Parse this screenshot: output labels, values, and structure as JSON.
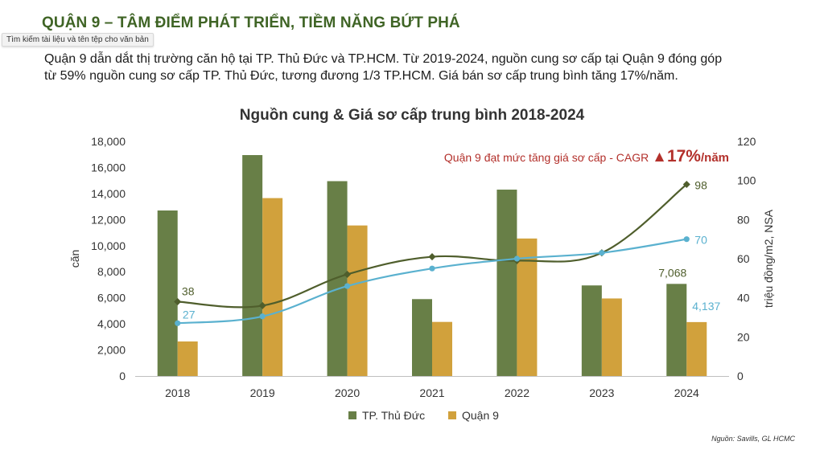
{
  "heading": "QUẬN 9 – TÂM ĐIỂM PHÁT TRIỂN, TIỀM NĂNG BỨT PHÁ",
  "tooltip": "Tìm kiếm tài liệu và tên tệp cho văn bản",
  "intro": {
    "line1": "Quận 9 dẫn dắt thị trường căn hộ tại TP. Thủ Đức và TP.HCM. Từ 2019-2024, nguồn cung sơ cấp tại Quận 9 đóng góp",
    "line2": "từ 59% nguồn cung sơ cấp TP. Thủ Đức, tương đương 1/3 TP.HCM. Giá bán sơ cấp trung bình tăng 17%/năm."
  },
  "source": "Nguồn: Savills, GL HCMC",
  "colors": {
    "thu_duc_bar": "#687f47",
    "quan9_bar": "#d1a13c",
    "thu_duc_price_line": "#4f5e2c",
    "quan9_price_line": "#5ab1cf",
    "cagr_text": "#b3302b",
    "heading": "#3f6425"
  },
  "chart_data": {
    "type": "bar",
    "title": "Nguồn cung & Giá sơ cấp trung bình 2018-2024",
    "ylabel": "căn",
    "y2label": "triệu đồng/m2, NSA",
    "categories": [
      "2018",
      "2019",
      "2020",
      "2021",
      "2022",
      "2023",
      "2024"
    ],
    "ylim": [
      0,
      18000
    ],
    "y_ticks": [
      "0",
      "2,000",
      "4,000",
      "6,000",
      "8,000",
      "10,000",
      "12,000",
      "14,000",
      "16,000",
      "18,000"
    ],
    "y2lim": [
      0,
      120
    ],
    "y2_ticks": [
      "0",
      "20",
      "40",
      "60",
      "80",
      "100",
      "120"
    ],
    "series": [
      {
        "name": "TP. Thủ Đức",
        "type": "bar",
        "axis": "left",
        "values": [
          12700,
          16950,
          14950,
          5900,
          14300,
          6950,
          7068
        ]
      },
      {
        "name": "Quận 9",
        "type": "bar",
        "axis": "left",
        "values": [
          2650,
          13650,
          11550,
          4150,
          10550,
          5950,
          4137
        ]
      },
      {
        "type": "line",
        "axis": "right",
        "values": [
          38,
          36,
          52,
          61,
          59,
          63,
          98
        ]
      },
      {
        "type": "line",
        "axis": "right",
        "values": [
          27,
          30.5,
          46,
          55,
          60,
          63,
          70
        ]
      }
    ],
    "data_labels": [
      {
        "series": 2,
        "index": 0,
        "text": "38"
      },
      {
        "series": 2,
        "index": 6,
        "text": "98"
      },
      {
        "series": 3,
        "index": 0,
        "text": "27"
      },
      {
        "series": 3,
        "index": 6,
        "text": "70"
      },
      {
        "series": 0,
        "index": 6,
        "text": "7,068"
      },
      {
        "series": 1,
        "index": 6,
        "text": "4,137"
      }
    ],
    "annotation": {
      "text": "Quận 9 đạt mức tăng giá sơ cấp - CAGR",
      "arrow": "▲",
      "value": "17%",
      "suffix": "/năm"
    },
    "legend": [
      "TP. Thủ Đức",
      "Quận 9"
    ],
    "legend_position": "bottom",
    "grid": false
  }
}
